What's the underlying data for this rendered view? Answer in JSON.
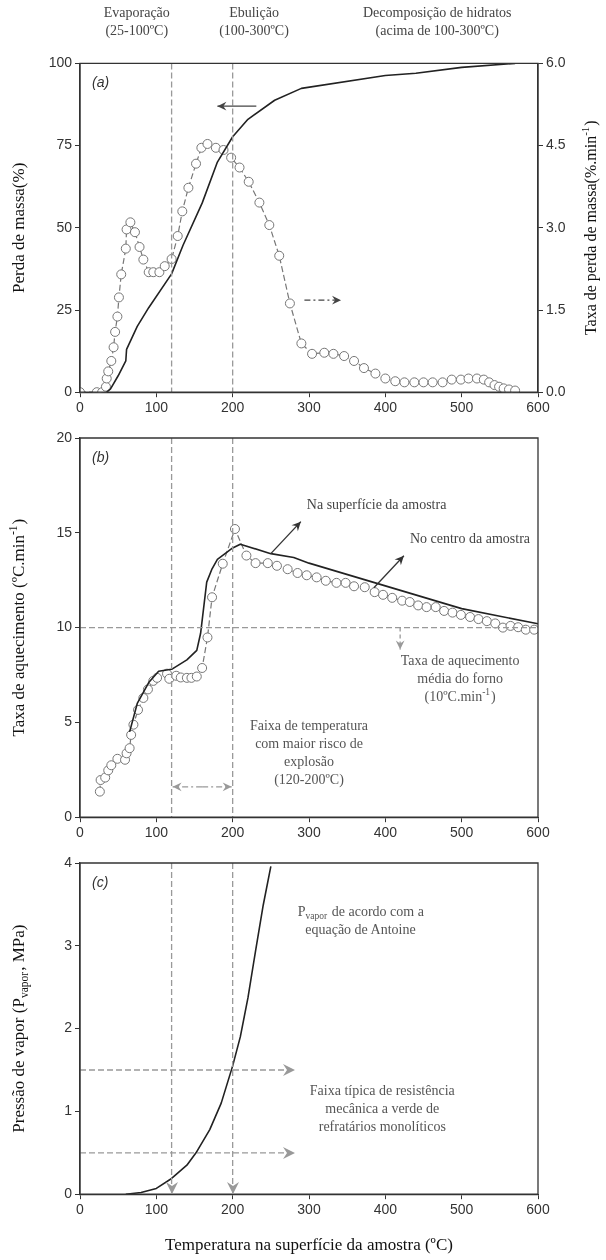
{
  "chart_data": [
    {
      "type": "line",
      "title": "(a)",
      "ylabel": "Perda de massa(%)",
      "y2label": "Taxa de perda de massa(%.min$^{-1}$)",
      "annotations": [
        "Evaporação\n(25-100ºC)",
        "Ebulição\n(100-300ºC)",
        "Decomposição de hidratos\n(acima de 100-300ºC)"
      ],
      "xlim": [
        0,
        600
      ],
      "xticks": [
        0,
        100,
        200,
        300,
        400,
        500,
        600
      ],
      "ylim": [
        0,
        100
      ],
      "yticks": [
        0,
        25,
        50,
        75,
        100
      ],
      "y2lim": [
        0,
        6
      ],
      "y2ticks": [
        {
          "value": 0,
          "label": "0.0"
        },
        1.5,
        {
          "value": 3,
          "label": "3.0"
        },
        4.5,
        {
          "value": 6,
          "label": "6.0"
        }
      ],
      "ref_lines": [
        {
          "axis": "x",
          "value": 120,
          "color": "#999999",
          "line_style": "dashed"
        },
        {
          "axis": "x",
          "value": 200,
          "color": "#999999",
          "line_style": "dashed"
        }
      ],
      "series": [
        {
          "color": "#222222",
          "marker": "none",
          "line_style": "solid",
          "x": [
            35,
            40,
            50,
            60,
            61,
            75,
            90,
            120,
            135,
            160,
            180,
            200,
            220,
            255,
            290,
            400,
            440,
            500,
            570
          ],
          "values": [
            0,
            1,
            5,
            9.5,
            13,
            20,
            25.7,
            36,
            44.7,
            57.5,
            70,
            77.7,
            83,
            88.8,
            92.4,
            96.3,
            97,
            98.8,
            100
          ]
        },
        {
          "color": "#777777",
          "marker": "circle",
          "line_style": "dashed",
          "axis": "y2",
          "x": [
            0,
            22,
            29,
            34,
            35,
            37,
            41,
            44,
            46,
            49,
            51,
            54,
            60,
            61,
            66,
            72,
            78,
            83,
            90,
            96,
            104,
            111,
            120,
            128,
            134,
            142,
            152,
            159,
            167,
            178,
            188,
            198,
            209,
            221,
            235,
            248,
            261,
            275,
            290,
            304,
            320,
            332,
            346,
            359,
            372,
            387,
            400,
            413,
            425,
            438,
            450,
            462,
            475,
            487,
            499,
            509,
            520,
            529,
            536,
            543,
            549,
            555,
            562,
            570
          ],
          "values": [
            0,
            0,
            0,
            0.1,
            0.25,
            0.38,
            0.57,
            0.82,
            1.1,
            1.38,
            1.73,
            2.15,
            2.62,
            2.97,
            3.1,
            2.92,
            2.65,
            2.42,
            2.19,
            2.19,
            2.19,
            2.3,
            2.43,
            2.85,
            3.3,
            3.73,
            4.17,
            4.46,
            4.53,
            4.46,
            4.42,
            4.28,
            4.1,
            3.84,
            3.46,
            3.05,
            2.49,
            1.62,
            0.89,
            0.7,
            0.72,
            0.7,
            0.66,
            0.57,
            0.44,
            0.34,
            0.25,
            0.2,
            0.18,
            0.18,
            0.18,
            0.18,
            0.18,
            0.23,
            0.23,
            0.25,
            0.25,
            0.23,
            0.18,
            0.13,
            0.1,
            0.07,
            0.05,
            0.03
          ]
        }
      ]
    },
    {
      "type": "line",
      "title": "(b)",
      "ylabel": "Taxa de aquecimento (ºC.min$^{-1}$)",
      "annotations": [
        {
          "text": "Na superfície da amostra",
          "x": 250,
          "y": 13.9
        },
        {
          "text": "No centro da amostra",
          "x": 385,
          "y": 12.1
        },
        "Faixa de temperatura\ncom maior risco de\nexplosão\n(120-200ºC)"
      ],
      "xlim": [
        0,
        600
      ],
      "xticks": [
        0,
        100,
        200,
        300,
        400,
        500,
        600
      ],
      "ylim": [
        0,
        20
      ],
      "yticks": [
        0,
        5,
        10,
        15,
        20
      ],
      "ref_lines": [
        {
          "axis": "y",
          "value": 10,
          "label": "Taxa de aquecimento\nmédia do forno\n(10ºC.min$^{-1}$)",
          "color": "#999999",
          "line_style": "dashed"
        },
        {
          "axis": "x",
          "value": 120,
          "color": "#999999",
          "line_style": "dashed"
        },
        {
          "axis": "x",
          "value": 200,
          "color": "#999999",
          "line_style": "dashed"
        }
      ],
      "series": [
        {
          "color": "#222222",
          "marker": "none",
          "line_style": "solid",
          "x": [
            65,
            75,
            90,
            103,
            120,
            140,
            153,
            158,
            166,
            173,
            180,
            200,
            210,
            250,
            280,
            300,
            400,
            500,
            600
          ],
          "values": [
            4.5,
            6,
            7.1,
            7.7,
            7.8,
            8.3,
            8.8,
            9.7,
            12.4,
            13.1,
            13.6,
            14.2,
            14.4,
            13.9,
            13.7,
            13.4,
            12.2,
            11,
            10.2
          ]
        },
        {
          "color": "#777777",
          "marker": "circle",
          "line_style": "dashed",
          "x": [
            26,
            27,
            33,
            37,
            41,
            49,
            59,
            61,
            65,
            67,
            70,
            76,
            83,
            89,
            96,
            101,
            114,
            117,
            126,
            132,
            140,
            146,
            153,
            160,
            167,
            173,
            187,
            203,
            218,
            230,
            246,
            258,
            272,
            285,
            297,
            310,
            322,
            336,
            348,
            359,
            373,
            386,
            397,
            409,
            422,
            432,
            443,
            454,
            466,
            477,
            488,
            499,
            511,
            522,
            533,
            544,
            554,
            564,
            574,
            584,
            595
          ],
          "values": [
            1.35,
            1.96,
            2.09,
            2.47,
            2.74,
            3.08,
            3.03,
            3.37,
            3.64,
            4.34,
            4.88,
            5.66,
            6.29,
            6.74,
            7.19,
            7.35,
            7.57,
            7.3,
            7.46,
            7.37,
            7.35,
            7.35,
            7.42,
            7.87,
            9.48,
            11.6,
            13.37,
            15.2,
            13.8,
            13.4,
            13.4,
            13.26,
            13.08,
            12.88,
            12.76,
            12.65,
            12.47,
            12.36,
            12.36,
            12.18,
            12.13,
            11.87,
            11.73,
            11.57,
            11.42,
            11.35,
            11.17,
            11.08,
            11.08,
            10.88,
            10.79,
            10.67,
            10.56,
            10.45,
            10.34,
            10.22,
            10,
            10.09,
            10.02,
            9.89,
            9.89
          ]
        }
      ]
    },
    {
      "type": "line",
      "title": "(c)",
      "xlabel": "Temperatura na superfície da amostra (ºC)",
      "ylabel": "Pressão de vapor (P$_{vapor}$, MPa)",
      "xlim": [
        0,
        600
      ],
      "xticks": [
        0,
        100,
        200,
        300,
        400,
        500,
        600
      ],
      "ylim": [
        0,
        4
      ],
      "yticks": [
        0,
        1,
        2,
        3,
        4
      ],
      "annotations": [
        "Faixa típica de resistência\nmecânica a verde de\nrefratários monolíticos"
      ],
      "ref_lines": [
        {
          "axis": "x",
          "value": 120,
          "color": "#999999",
          "line_style": "dashed"
        },
        {
          "axis": "x",
          "value": 200,
          "color": "#999999",
          "line_style": "dashed"
        },
        {
          "axis": "y",
          "value": 0.5,
          "color": "#999999",
          "line_style": "dashed"
        },
        {
          "axis": "y",
          "value": 1.5,
          "color": "#999999",
          "line_style": "dashed"
        }
      ],
      "series": [
        {
          "name": "P$_{vapor}$ de acordo com a\nequação de Antoine",
          "color": "#222222",
          "marker": "none",
          "line_style": "solid",
          "x": [
            60,
            80,
            100,
            120,
            140,
            152,
            170,
            185,
            200,
            210,
            220,
            230,
            240,
            250
          ],
          "values": [
            0,
            0.02,
            0.07,
            0.19,
            0.35,
            0.5,
            0.78,
            1.1,
            1.55,
            1.9,
            2.37,
            2.94,
            3.49,
            3.96
          ]
        }
      ]
    }
  ]
}
